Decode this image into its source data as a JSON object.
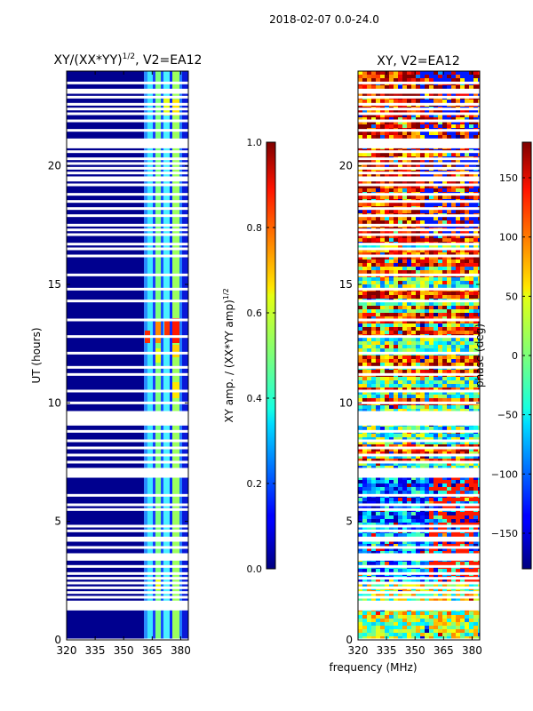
{
  "figure": {
    "suptitle": "2018-02-07 0.0-24.0"
  },
  "chart_data": [
    {
      "type": "heatmap",
      "title": "XY/(XX*YY)",
      "title_superscript": "1/2",
      "title_suffix": ", V2=EA12",
      "xlabel": "",
      "ylabel": "UT (hours)",
      "xlim": [
        320,
        384
      ],
      "ylim": [
        0,
        24
      ],
      "xticks": [
        320,
        335,
        350,
        365,
        380
      ],
      "yticks": [
        0,
        5,
        10,
        15,
        20
      ],
      "colorbar": {
        "label": "XY amp. / (XX*YY amp)",
        "label_superscript": "1/2",
        "range": [
          0.0,
          1.0
        ],
        "ticks": [
          "0.0",
          "0.2",
          "0.4",
          "0.6",
          "0.8",
          "1.0"
        ],
        "tick_values": [
          0.0,
          0.2,
          0.4,
          0.6,
          0.8,
          1.0
        ],
        "colormap": "jet"
      },
      "flagged_hours": [
        0.0,
        1.3,
        1.4,
        1.5,
        1.6,
        1.8,
        2.0,
        2.2,
        2.4,
        2.6,
        2.8,
        3.1,
        3.4,
        3.5,
        3.6,
        3.9,
        4.2,
        4.3,
        4.6,
        4.8,
        5.5,
        5.7,
        6.1,
        6.9,
        7.0,
        7.2,
        7.5,
        7.8,
        8.1,
        8.4,
        8.8,
        9.1,
        9.2,
        9.3,
        9.4,
        9.5,
        9.6,
        10.0,
        10.5,
        11.2,
        11.5,
        12.1,
        12.8,
        13.5,
        14.3,
        14.8,
        15.4,
        16.2,
        16.5,
        16.7,
        17.1,
        17.3,
        17.5,
        17.9,
        18.2,
        18.5,
        18.8,
        19.2,
        19.4,
        19.5,
        19.7,
        19.9,
        20.1,
        20.3,
        20.6,
        20.8,
        20.9,
        21.0,
        21.1,
        21.5,
        21.9,
        22.2,
        22.4,
        22.6,
        22.9,
        23.1,
        23.2,
        23.5
      ]
    },
    {
      "type": "heatmap",
      "title": "XY, V2=EA12",
      "xlabel": "frequency (MHz)",
      "ylabel": "",
      "xlim": [
        320,
        384
      ],
      "ylim": [
        0,
        24
      ],
      "xticks": [
        320,
        335,
        350,
        365,
        380
      ],
      "yticks": [
        0,
        5,
        10,
        15,
        20
      ],
      "colorbar": {
        "label": "phase (deg)",
        "range": [
          -180,
          180
        ],
        "ticks": [
          "−150",
          "−100",
          "−50",
          "0",
          "50",
          "100",
          "150"
        ],
        "tick_values": [
          -150,
          -100,
          -50,
          0,
          50,
          100,
          150
        ],
        "colormap": "jet"
      },
      "flagged_hours": [
        0.0,
        1.3,
        1.4,
        1.5,
        1.6,
        1.8,
        2.0,
        2.2,
        2.4,
        2.6,
        2.8,
        3.1,
        3.4,
        3.5,
        3.6,
        3.9,
        4.2,
        4.3,
        4.6,
        4.8,
        5.5,
        5.7,
        6.1,
        6.9,
        7.0,
        7.2,
        7.5,
        7.8,
        8.1,
        8.4,
        8.8,
        9.1,
        9.2,
        9.3,
        9.4,
        9.5,
        9.6,
        10.0,
        10.5,
        11.2,
        11.5,
        12.1,
        12.8,
        13.5,
        14.3,
        14.8,
        15.4,
        16.2,
        16.5,
        16.7,
        17.1,
        17.3,
        17.5,
        17.9,
        18.2,
        18.5,
        18.8,
        19.2,
        19.4,
        19.5,
        19.7,
        19.9,
        20.1,
        20.3,
        20.6,
        20.8,
        20.9,
        21.0,
        21.1,
        21.5,
        21.9,
        22.2,
        22.4,
        22.6,
        22.9,
        23.1,
        23.2,
        23.5
      ]
    }
  ]
}
